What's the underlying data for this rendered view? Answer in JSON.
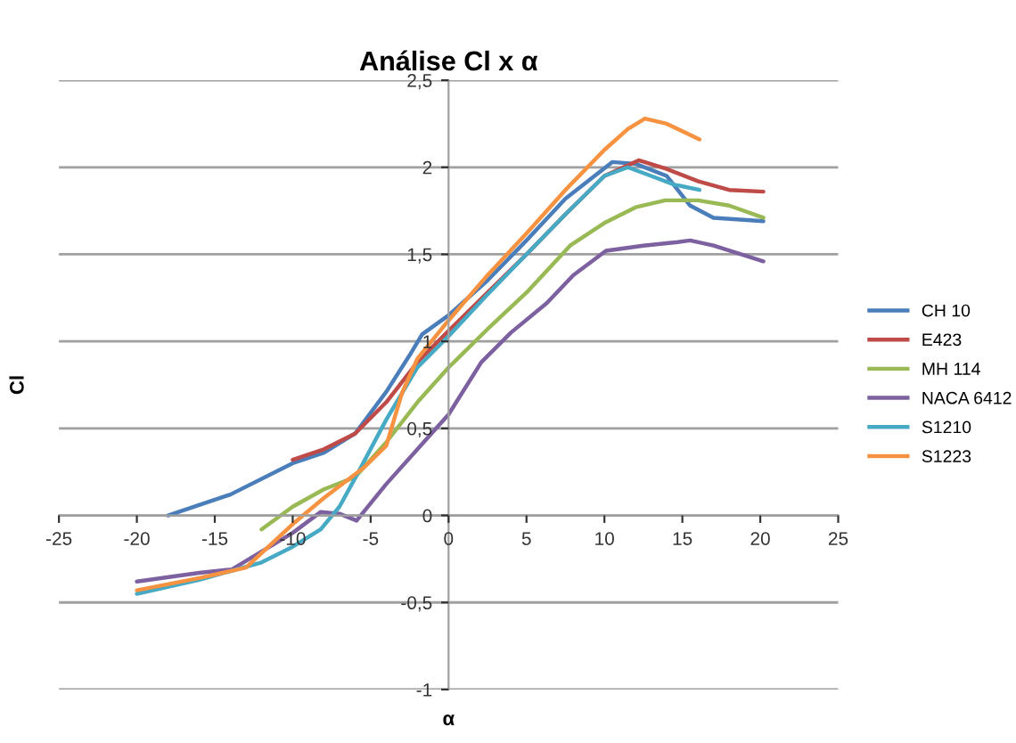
{
  "chart_data": {
    "type": "line",
    "title": "Análise Cl x α",
    "xlabel": "α",
    "ylabel": "Cl",
    "xlim": [
      -25,
      25
    ],
    "xticks": [
      -25,
      -20,
      -15,
      -10,
      -5,
      0,
      5,
      10,
      15,
      20,
      25
    ],
    "ylim": [
      -1,
      2.5
    ],
    "yticks": [
      {
        "value": -1,
        "label": "-1"
      },
      {
        "value": -0.5,
        "label": "-0,5"
      },
      {
        "value": 0,
        "label": "0"
      },
      {
        "value": 0.5,
        "label": "0,5"
      },
      {
        "value": 1,
        "label": "1"
      },
      {
        "value": 1.5,
        "label": "1,5"
      },
      {
        "value": 2,
        "label": "2"
      },
      {
        "value": 2.5,
        "label": "2,5"
      }
    ],
    "grid": "y",
    "legend": "right",
    "marker": "none",
    "line_style": "solid",
    "series": [
      {
        "name": "CH 10",
        "color": "#4a7ebb",
        "x": [
          -18,
          -14,
          -10,
          -8,
          -6,
          -4,
          -2.5,
          -1.7,
          0,
          2.5,
          5,
          7.5,
          10.5,
          12,
          14,
          15.5,
          17,
          20.2
        ],
        "values": [
          0,
          0.12,
          0.3,
          0.36,
          0.47,
          0.71,
          0.92,
          1.04,
          1.15,
          1.35,
          1.58,
          1.82,
          2.03,
          2.02,
          1.95,
          1.78,
          1.71,
          1.69
        ]
      },
      {
        "name": "E423",
        "color": "#be4b48",
        "x": [
          -10,
          -8,
          -6,
          -4,
          -2,
          0,
          2.5,
          5,
          7.5,
          10,
          12.2,
          14,
          16,
          18,
          20.2
        ],
        "values": [
          0.32,
          0.38,
          0.47,
          0.65,
          0.88,
          1.06,
          1.28,
          1.5,
          1.73,
          1.95,
          2.04,
          1.99,
          1.92,
          1.87,
          1.86
        ]
      },
      {
        "name": "MH 114",
        "color": "#98b954",
        "x": [
          -12,
          -10,
          -8,
          -6,
          -4,
          -2,
          0,
          2.5,
          5,
          7.8,
          10,
          12,
          13.9,
          16,
          18,
          20.2
        ],
        "values": [
          -0.08,
          0.05,
          0.15,
          0.22,
          0.42,
          0.65,
          0.85,
          1.07,
          1.28,
          1.55,
          1.68,
          1.77,
          1.81,
          1.81,
          1.78,
          1.71
        ]
      },
      {
        "name": "NACA 6412",
        "color": "#7d60a0",
        "x": [
          -20,
          -16,
          -13.9,
          -10,
          -8.2,
          -7,
          -5.9,
          -4,
          -2.1,
          0,
          2.1,
          4,
          6.3,
          8,
          10.1,
          12.5,
          14.7,
          15.5,
          17,
          20.2
        ],
        "values": [
          -0.38,
          -0.33,
          -0.31,
          -0.1,
          0.02,
          0.01,
          -0.03,
          0.18,
          0.37,
          0.58,
          0.88,
          1.05,
          1.22,
          1.38,
          1.52,
          1.55,
          1.57,
          1.58,
          1.55,
          1.46
        ]
      },
      {
        "name": "S1210",
        "color": "#46aac5",
        "x": [
          -20,
          -16,
          -12,
          -10,
          -8.2,
          -7,
          -5.9,
          -4,
          -2,
          0,
          2.5,
          5,
          7.5,
          10,
          11.5,
          13,
          14.5,
          16.1
        ],
        "values": [
          -0.45,
          -0.37,
          -0.27,
          -0.18,
          -0.08,
          0.05,
          0.23,
          0.55,
          0.85,
          1.03,
          1.27,
          1.5,
          1.73,
          1.95,
          2.0,
          1.95,
          1.9,
          1.87
        ]
      },
      {
        "name": "S1223",
        "color": "#f69240",
        "x": [
          -20,
          -16,
          -13,
          -10,
          -8,
          -5.5,
          -4,
          -3,
          -2,
          0,
          2.5,
          5,
          7.5,
          10,
          11.5,
          12.6,
          14,
          16.1
        ],
        "values": [
          -0.43,
          -0.36,
          -0.3,
          -0.05,
          0.1,
          0.27,
          0.4,
          0.7,
          0.9,
          1.12,
          1.38,
          1.62,
          1.87,
          2.1,
          2.22,
          2.28,
          2.25,
          2.16
        ]
      }
    ]
  }
}
